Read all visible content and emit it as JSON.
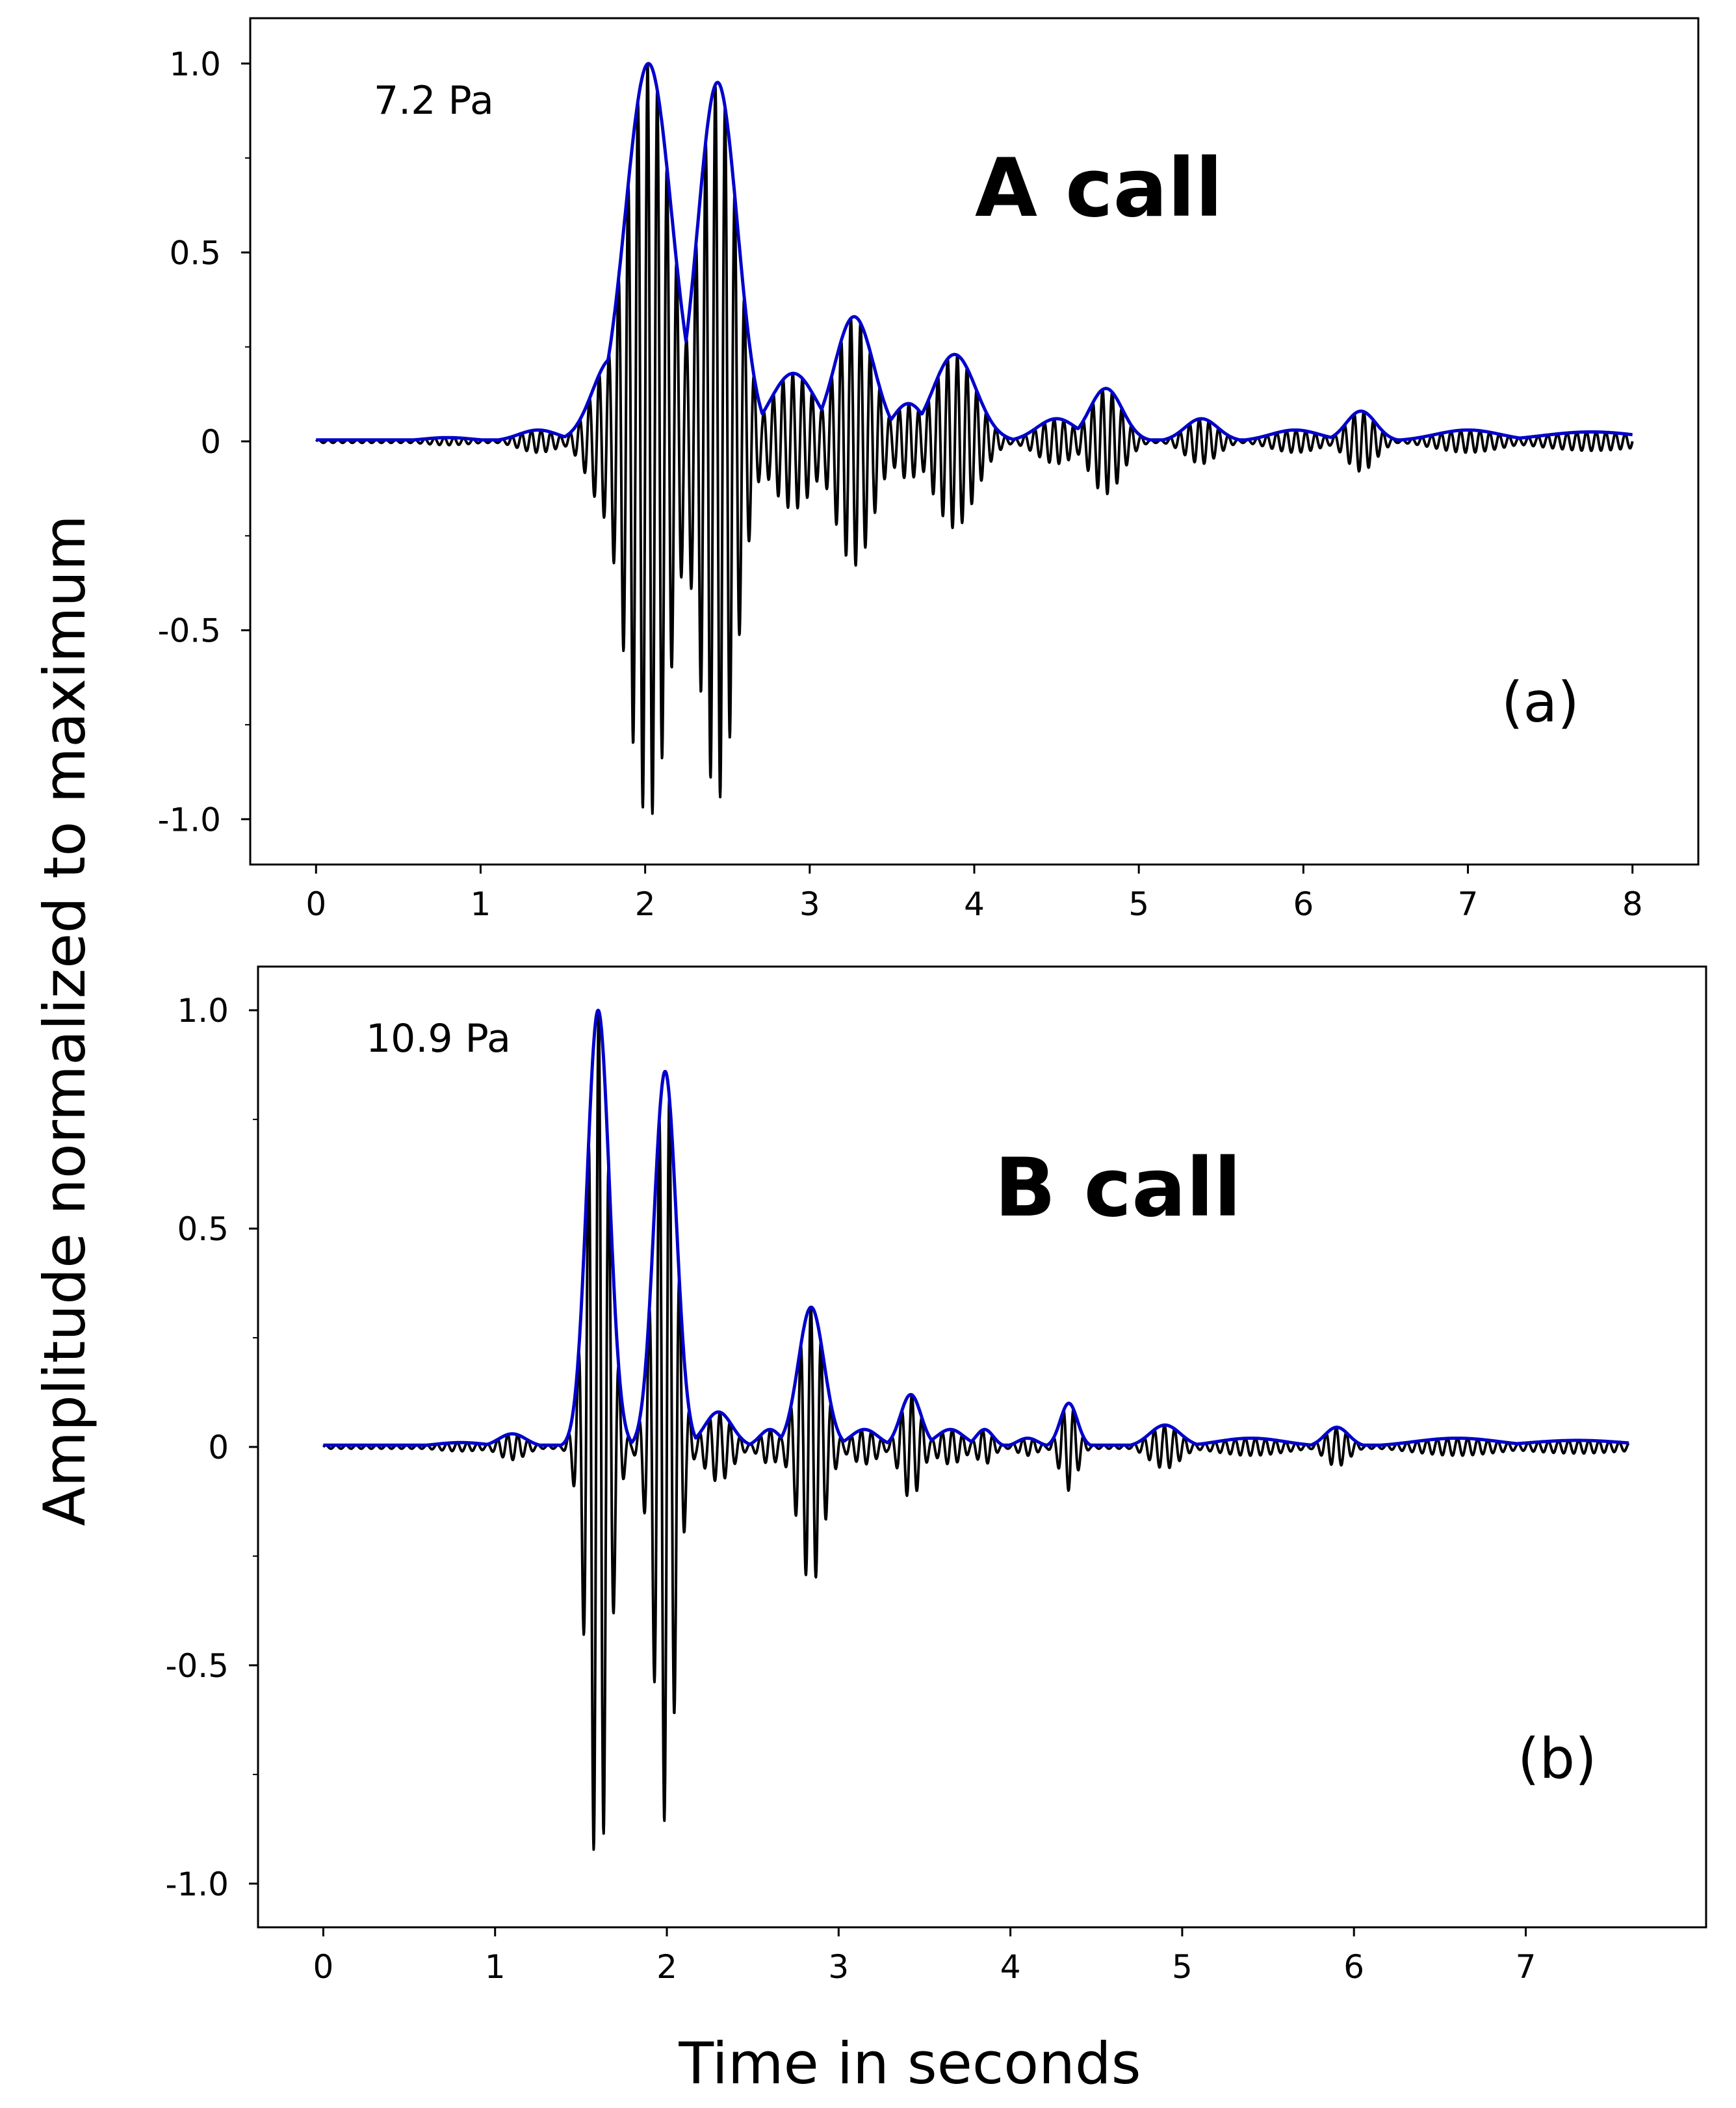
{
  "figure": {
    "ylabel": "Amplitude normalized to maximum",
    "xlabel": "Time in seconds"
  },
  "chart_data": [
    {
      "type": "line",
      "title": "A call",
      "panel_label": "(a)",
      "annotation": "7.2 Pa",
      "xlim": [
        -0.4,
        8.4
      ],
      "ylim": [
        -1.12,
        1.12
      ],
      "x_ticks": [
        0,
        1,
        2,
        3,
        4,
        5,
        6,
        7,
        8
      ],
      "x_tick_labels": [
        "0",
        "1",
        "2",
        "3",
        "4",
        "5",
        "6",
        "7",
        "8"
      ],
      "y_ticks": [
        1.0,
        0.5,
        0,
        -0.5,
        -1.0
      ],
      "y_tick_labels": [
        "1.0",
        "0.5",
        "0",
        "-0.5",
        "-1.0"
      ],
      "duration": 8.0,
      "carrier_freq_hz": 17,
      "series": [
        {
          "color": "#000000",
          "description": "waveform",
          "envelope_peaks": [
            {
              "t": 0.8,
              "amp": 0.01,
              "width": 0.15
            },
            {
              "t": 1.35,
              "amp": 0.03,
              "width": 0.12
            },
            {
              "t": 1.8,
              "amp": 0.22,
              "width": 0.12
            },
            {
              "t": 2.02,
              "amp": 1.0,
              "width": 0.14
            },
            {
              "t": 2.44,
              "amp": 0.95,
              "width": 0.12
            },
            {
              "t": 2.9,
              "amp": 0.18,
              "width": 0.14
            },
            {
              "t": 3.27,
              "amp": 0.33,
              "width": 0.12
            },
            {
              "t": 3.6,
              "amp": 0.1,
              "width": 0.1
            },
            {
              "t": 3.88,
              "amp": 0.23,
              "width": 0.13
            },
            {
              "t": 4.5,
              "amp": 0.06,
              "width": 0.12
            },
            {
              "t": 4.8,
              "amp": 0.14,
              "width": 0.1
            },
            {
              "t": 5.38,
              "amp": 0.06,
              "width": 0.1
            },
            {
              "t": 5.95,
              "amp": 0.03,
              "width": 0.15
            },
            {
              "t": 6.35,
              "amp": 0.08,
              "width": 0.09
            },
            {
              "t": 7.0,
              "amp": 0.03,
              "width": 0.2
            },
            {
              "t": 7.75,
              "amp": 0.025,
              "width": 0.3
            }
          ]
        },
        {
          "color": "#0000cc",
          "description": "upper envelope"
        }
      ]
    },
    {
      "type": "line",
      "title": "B call",
      "panel_label": "(b)",
      "annotation": "10.9 Pa",
      "xlim": [
        -0.38,
        8.05
      ],
      "ylim": [
        -1.1,
        1.1
      ],
      "x_ticks": [
        0,
        1,
        2,
        3,
        4,
        5,
        6,
        7
      ],
      "x_tick_labels": [
        "0",
        "1",
        "2",
        "3",
        "4",
        "5",
        "6",
        "7"
      ],
      "y_ticks": [
        1.0,
        0.5,
        0,
        -0.5,
        -1.0
      ],
      "y_tick_labels": [
        "1.0",
        "0.5",
        "0",
        "-0.5",
        "-1.0"
      ],
      "duration": 7.6,
      "carrier_freq_hz": 17,
      "series": [
        {
          "color": "#000000",
          "description": "waveform",
          "envelope_peaks": [
            {
              "t": 0.8,
              "amp": 0.01,
              "width": 0.15
            },
            {
              "t": 1.1,
              "amp": 0.03,
              "width": 0.08
            },
            {
              "t": 1.6,
              "amp": 1.0,
              "width": 0.065
            },
            {
              "t": 1.99,
              "amp": 0.86,
              "width": 0.065
            },
            {
              "t": 2.3,
              "amp": 0.08,
              "width": 0.08
            },
            {
              "t": 2.6,
              "amp": 0.04,
              "width": 0.06
            },
            {
              "t": 2.84,
              "amp": 0.32,
              "width": 0.075
            },
            {
              "t": 3.15,
              "amp": 0.04,
              "width": 0.08
            },
            {
              "t": 3.42,
              "amp": 0.12,
              "width": 0.06
            },
            {
              "t": 3.65,
              "amp": 0.04,
              "width": 0.08
            },
            {
              "t": 3.85,
              "amp": 0.04,
              "width": 0.05
            },
            {
              "t": 4.1,
              "amp": 0.02,
              "width": 0.06
            },
            {
              "t": 4.34,
              "amp": 0.1,
              "width": 0.05
            },
            {
              "t": 4.9,
              "amp": 0.05,
              "width": 0.09
            },
            {
              "t": 5.4,
              "amp": 0.02,
              "width": 0.2
            },
            {
              "t": 5.9,
              "amp": 0.045,
              "width": 0.07
            },
            {
              "t": 6.6,
              "amp": 0.02,
              "width": 0.25
            },
            {
              "t": 7.3,
              "amp": 0.015,
              "width": 0.3
            }
          ]
        },
        {
          "color": "#0000cc",
          "description": "upper envelope"
        }
      ]
    }
  ]
}
